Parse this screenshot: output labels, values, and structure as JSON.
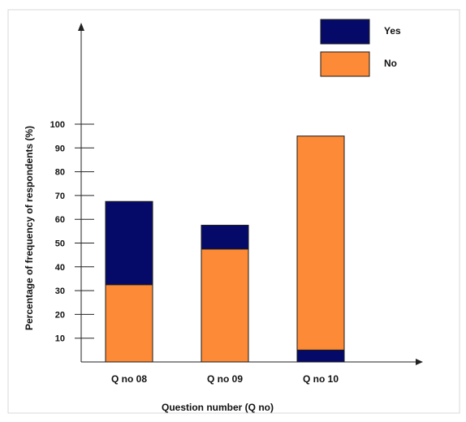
{
  "chart_data": {
    "type": "bar",
    "stacked": true,
    "categories": [
      "Q no 08",
      "Q no 09",
      "Q no 10"
    ],
    "series": [
      {
        "name": "Yes",
        "color": "#050a69",
        "values": [
          35,
          10,
          5
        ]
      },
      {
        "name": "No",
        "color": "#fd8a36",
        "values": [
          32.5,
          47.5,
          90
        ]
      }
    ],
    "stack_order_bottom_to_top": [
      "No",
      "Yes"
    ],
    "stack_order_note_q10": "Yes sits at bottom for Q no 10",
    "xlabel": "Question number (Q no)",
    "ylabel": "Percentage of frequency of respondents (%)",
    "ylim": [
      0,
      100
    ],
    "yticks": [
      10,
      20,
      30,
      40,
      50,
      60,
      70,
      80,
      90,
      100
    ],
    "grid": false,
    "legend": {
      "placement": "top-right",
      "entries": [
        "Yes",
        "No"
      ]
    }
  }
}
